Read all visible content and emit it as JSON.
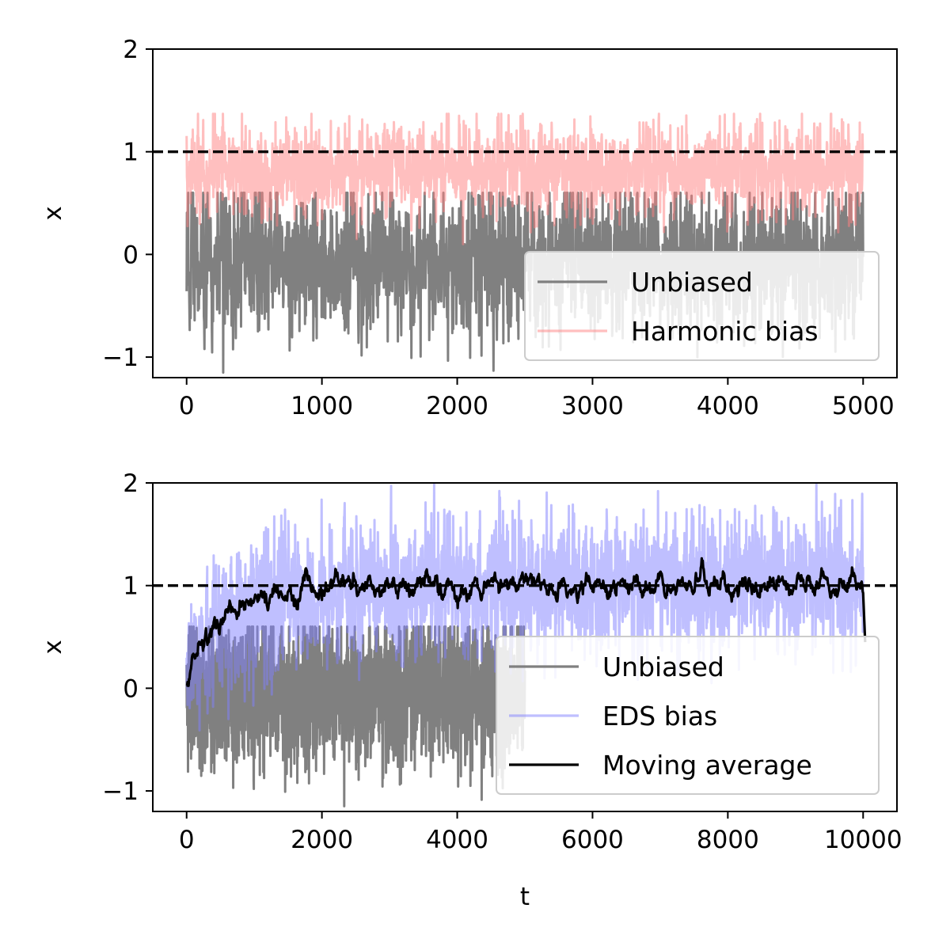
{
  "chart_data": [
    {
      "type": "line",
      "xlabel": "",
      "ylabel": "x",
      "xlim": [
        -250,
        5250
      ],
      "ylim": [
        -1.2,
        2
      ],
      "xticks": [
        0,
        1000,
        2000,
        3000,
        4000,
        5000
      ],
      "yticks": [
        -1,
        0,
        1,
        2
      ],
      "x_range": [
        0,
        5000
      ],
      "reference_line": {
        "y": 1,
        "style": "dashed",
        "color": "#000000"
      },
      "legend": {
        "position": "lower-right",
        "entries": [
          "Unbiased",
          "Harmonic bias"
        ]
      },
      "series": [
        {
          "name": "Unbiased",
          "color": "#808080",
          "x_range": [
            0,
            5000
          ],
          "mean": 0.0,
          "typical_range": [
            -0.65,
            0.55
          ],
          "extremes": [
            -1.2,
            0.6
          ]
        },
        {
          "name": "Harmonic bias",
          "color": "#ff8080",
          "opacity": 0.5,
          "x_range": [
            0,
            5000
          ],
          "mean": 0.85,
          "typical_range": [
            0.45,
            1.2
          ],
          "extremes": [
            0.1,
            1.37
          ]
        }
      ]
    },
    {
      "type": "line",
      "xlabel": "t",
      "ylabel": "x",
      "xlim": [
        -500,
        10500
      ],
      "ylim": [
        -1.2,
        2
      ],
      "xticks": [
        0,
        2000,
        4000,
        6000,
        8000,
        10000
      ],
      "yticks": [
        -1,
        0,
        1,
        2
      ],
      "x_range": [
        0,
        10000
      ],
      "reference_line": {
        "y": 1,
        "style": "dashed",
        "color": "#000000"
      },
      "legend": {
        "position": "lower-right",
        "entries": [
          "Unbiased",
          "EDS bias",
          "Moving average"
        ]
      },
      "series": [
        {
          "name": "Unbiased",
          "color": "#808080",
          "x_range": [
            0,
            5000
          ],
          "mean": 0.0,
          "typical_range": [
            -0.65,
            0.55
          ],
          "extremes": [
            -1.2,
            0.6
          ]
        },
        {
          "name": "EDS bias",
          "color": "#8080ff",
          "opacity": 0.5,
          "x_range": [
            0,
            10000
          ],
          "mean": 1.0,
          "typical_range": [
            0.4,
            1.6
          ],
          "extremes": [
            -0.7,
            2.0
          ]
        },
        {
          "name": "Moving average",
          "color": "#000000",
          "x_range": [
            0,
            10000
          ],
          "points": [
            [
              0,
              0.05
            ],
            [
              100,
              0.4
            ],
            [
              300,
              0.55
            ],
            [
              500,
              0.7
            ],
            [
              800,
              0.8
            ],
            [
              1000,
              0.85
            ],
            [
              1400,
              0.92
            ],
            [
              1700,
              0.97
            ],
            [
              2000,
              1.0
            ],
            [
              3000,
              1.0
            ],
            [
              4000,
              1.0
            ],
            [
              5000,
              1.02
            ],
            [
              6000,
              0.98
            ],
            [
              7000,
              1.0
            ],
            [
              8000,
              1.0
            ],
            [
              9000,
              1.02
            ],
            [
              10000,
              1.0
            ],
            [
              10030,
              0.45
            ]
          ]
        }
      ]
    }
  ]
}
